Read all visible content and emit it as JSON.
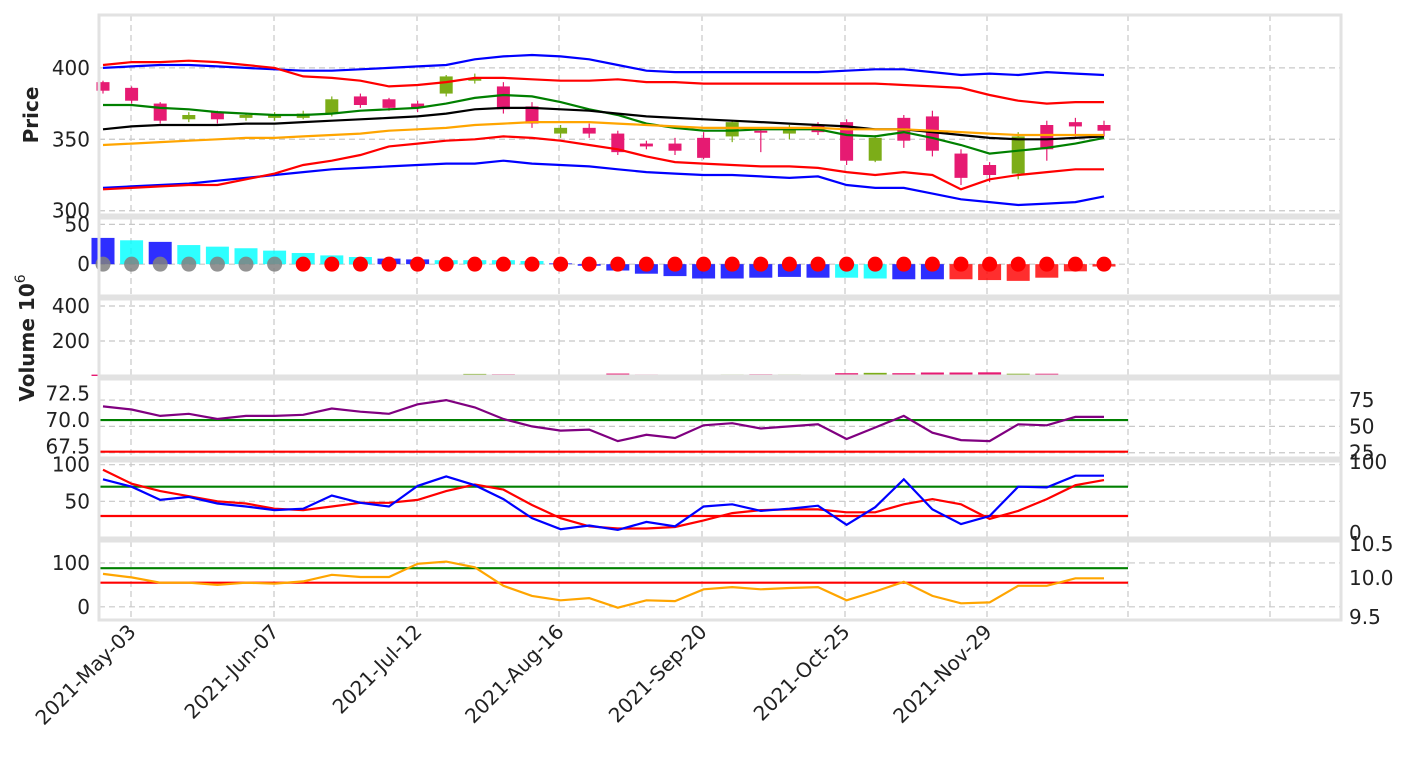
{
  "chart_data": {
    "type": "candlestick-multi-panel",
    "x_tick_labels": [
      "2021-May-03",
      "2021-Jun-07",
      "2021-Jul-12",
      "2021-Aug-16",
      "2021-Sep-20",
      "2021-Oct-25",
      "2021-Nov-29"
    ],
    "weeks": 36,
    "colors": {
      "up": "#7cad18",
      "down": "#e61a72",
      "bb_outer": "#0000ff",
      "bb_inner": "#ff0000",
      "ma_short": "#008000",
      "ma_mid": "#000000",
      "ma_long": "#ffa500",
      "macd_pos": "#0000ff",
      "macd_neg": "#00ffff",
      "macd_neg_strong": "#ff0000",
      "dot_gray": "#808080",
      "dot_red": "#ff0000",
      "rsi_line": "#800080",
      "level_high": "#008000",
      "level_low": "#ff0000",
      "stoch_k": "#0000ff",
      "stoch_d": "#ff0000",
      "cci_line": "#ffa500"
    },
    "panels": [
      {
        "name": "price",
        "ylabel": "Price",
        "yticks": [
          "300",
          "350",
          "400"
        ],
        "ylim": [
          297,
          437
        ],
        "candles": {
          "open": [
            390,
            386,
            375,
            364,
            369,
            365,
            365,
            365,
            368,
            380,
            378,
            375,
            382,
            391,
            387,
            373,
            354,
            358,
            354,
            347,
            347,
            351,
            352,
            356,
            354,
            360,
            362,
            335,
            365,
            366,
            340,
            332,
            326,
            360,
            362,
            360
          ],
          "close": [
            384,
            377,
            363,
            367,
            364,
            367,
            367,
            368,
            378,
            374,
            372,
            372,
            394,
            393,
            371,
            361,
            358,
            354,
            341,
            345,
            342,
            337,
            362,
            355,
            358,
            355,
            335,
            351,
            349,
            342,
            323,
            325,
            352,
            343,
            359,
            356
          ],
          "high": [
            391,
            387,
            376,
            369,
            370,
            368,
            369,
            370,
            380,
            382,
            379,
            377,
            395,
            396,
            390,
            376,
            360,
            361,
            356,
            349,
            351,
            355,
            363,
            358,
            360,
            362,
            364,
            353,
            367,
            370,
            343,
            334,
            355,
            363,
            365,
            363
          ],
          "low": [
            382,
            375,
            361,
            362,
            361,
            363,
            363,
            364,
            366,
            372,
            370,
            369,
            380,
            389,
            368,
            358,
            351,
            351,
            339,
            343,
            339,
            336,
            348,
            341,
            350,
            353,
            332,
            334,
            344,
            338,
            318,
            320,
            322,
            335,
            352,
            352
          ]
        },
        "lines": [
          {
            "color_key": "bb_outer",
            "values": [
              400,
              401,
              402,
              402,
              401,
              400,
              399,
              398,
              398,
              399,
              400,
              401,
              402,
              406,
              408,
              409,
              408,
              406,
              402,
              398,
              397,
              397,
              397,
              397,
              397,
              397,
              398,
              399,
              399,
              397,
              395,
              396,
              395,
              397,
              396,
              395
            ]
          },
          {
            "color_key": "bb_outer",
            "values": [
              316,
              317,
              318,
              319,
              321,
              323,
              325,
              327,
              329,
              330,
              331,
              332,
              333,
              333,
              335,
              333,
              332,
              331,
              329,
              327,
              326,
              325,
              325,
              324,
              323,
              324,
              318,
              316,
              316,
              312,
              308,
              306,
              304,
              305,
              306,
              310
            ]
          },
          {
            "color_key": "bb_inner",
            "values": [
              402,
              404,
              404,
              405,
              404,
              402,
              400,
              394,
              393,
              391,
              387,
              388,
              390,
              393,
              393,
              392,
              391,
              391,
              392,
              390,
              390,
              389,
              389,
              389,
              389,
              389,
              389,
              389,
              388,
              387,
              386,
              381,
              377,
              375,
              376,
              376
            ]
          },
          {
            "color_key": "bb_inner",
            "values": [
              315,
              316,
              317,
              318,
              318,
              322,
              326,
              332,
              335,
              339,
              345,
              347,
              349,
              350,
              352,
              351,
              349,
              346,
              343,
              338,
              334,
              333,
              332,
              331,
              331,
              330,
              327,
              325,
              327,
              325,
              315,
              322,
              325,
              327,
              329,
              329
            ]
          },
          {
            "color_key": "ma_short",
            "values": [
              374,
              374,
              372,
              371,
              369,
              368,
              367,
              367,
              368,
              370,
              371,
              372,
              375,
              379,
              381,
              380,
              376,
              371,
              367,
              361,
              358,
              356,
              356,
              357,
              357,
              357,
              353,
              352,
              355,
              351,
              346,
              340,
              342,
              344,
              347,
              351
            ]
          },
          {
            "color_key": "ma_mid",
            "values": [
              357,
              359,
              360,
              360,
              360,
              361,
              361,
              362,
              363,
              364,
              365,
              366,
              368,
              371,
              372,
              372,
              371,
              370,
              368,
              366,
              365,
              364,
              363,
              362,
              361,
              360,
              359,
              357,
              357,
              355,
              353,
              351,
              350,
              350,
              351,
              352
            ]
          },
          {
            "color_key": "ma_long",
            "values": [
              346,
              347,
              348,
              349,
              350,
              351,
              351,
              352,
              353,
              354,
              356,
              357,
              358,
              360,
              361,
              362,
              362,
              362,
              361,
              360,
              359,
              358,
              358,
              358,
              358,
              358,
              357,
              357,
              357,
              356,
              355,
              354,
              353,
              353,
              353,
              353
            ]
          }
        ]
      },
      {
        "name": "macd",
        "yticks": [
          "0",
          "50"
        ],
        "ylim": [
          -40,
          58
        ],
        "bars": [
          33,
          30,
          28,
          24,
          22,
          20,
          17,
          14,
          11,
          9,
          7,
          6,
          5,
          5,
          5,
          4,
          1,
          -2,
          -8,
          -12,
          -15,
          -18,
          -18,
          -17,
          -16,
          -17,
          -17,
          -18,
          -19,
          -19,
          -19,
          -20,
          -21,
          -17,
          -9,
          -3
        ],
        "bar_colors": [
          "macd_pos",
          "macd_neg",
          "macd_pos",
          "macd_neg",
          "macd_neg",
          "macd_neg",
          "macd_neg",
          "macd_neg",
          "macd_neg",
          "macd_neg",
          "macd_pos",
          "macd_pos",
          "macd_neg",
          "macd_neg",
          "macd_neg",
          "macd_neg",
          "macd_pos",
          "macd_pos",
          "macd_pos",
          "macd_pos",
          "macd_pos",
          "macd_pos",
          "macd_pos",
          "macd_pos",
          "macd_pos",
          "macd_pos",
          "macd_neg",
          "macd_neg",
          "macd_pos",
          "macd_pos",
          "macd_neg_strong",
          "macd_neg_strong",
          "macd_neg_strong",
          "macd_neg_strong",
          "macd_neg_strong",
          "macd_neg_strong"
        ],
        "dot_colors": [
          "dot_gray",
          "dot_gray",
          "dot_gray",
          "dot_gray",
          "dot_gray",
          "dot_gray",
          "dot_gray",
          "dot_red",
          "dot_red",
          "dot_red",
          "dot_red",
          "dot_red",
          "dot_red",
          "dot_red",
          "dot_red",
          "dot_red",
          "dot_red",
          "dot_red",
          "dot_red",
          "dot_red",
          "dot_red",
          "dot_red",
          "dot_red",
          "dot_red",
          "dot_red",
          "dot_red",
          "dot_red",
          "dot_red",
          "dot_red",
          "dot_red",
          "dot_red",
          "dot_red",
          "dot_red",
          "dot_red",
          "dot_red",
          "dot_red"
        ]
      },
      {
        "name": "volume",
        "ylabel": "Volume  10",
        "ylabel_exponent": "6",
        "yticks": [
          "200",
          "400"
        ],
        "ylim": [
          0,
          440
        ],
        "values": [
          8,
          7,
          6,
          7,
          7,
          5,
          6,
          7,
          8,
          7,
          6,
          5,
          8,
          12,
          10,
          8,
          7,
          8,
          14,
          9,
          8,
          8,
          9,
          10,
          9,
          6,
          16,
          18,
          16,
          20,
          20,
          21,
          13,
          13,
          6,
          5
        ]
      },
      {
        "name": "rsi",
        "yticks": [
          "67.5",
          "70.0",
          "72.5"
        ],
        "yticks_right": [
          "25",
          "50",
          "75"
        ],
        "ylim": [
          66.4,
          73.9
        ],
        "ylim_right": [
          20,
          95
        ],
        "line": [
          69,
          66,
          60,
          62,
          57,
          60,
          60,
          61,
          67,
          64,
          62,
          71,
          75,
          68,
          57,
          50,
          46,
          47,
          36,
          42,
          39,
          51,
          53,
          48,
          50,
          52,
          38,
          49,
          60,
          44,
          37,
          36,
          52,
          51,
          59,
          59
        ],
        "level_high": 70,
        "level_low": 67
      },
      {
        "name": "stochastic",
        "yticks": [
          "50",
          "100"
        ],
        "yticks_right": [
          "0",
          "100"
        ],
        "ylim": [
          0,
          105
        ],
        "k": [
          80,
          70,
          52,
          56,
          47,
          43,
          38,
          40,
          58,
          48,
          43,
          71,
          84,
          72,
          53,
          27,
          12,
          17,
          11,
          22,
          16,
          43,
          46,
          37,
          40,
          44,
          18,
          42,
          80,
          39,
          19,
          30,
          70,
          69,
          85,
          85
        ],
        "d": [
          93,
          74,
          64,
          57,
          50,
          47,
          40,
          38,
          43,
          48,
          48,
          52,
          64,
          73,
          66,
          45,
          27,
          16,
          13,
          13,
          15,
          24,
          34,
          38,
          39,
          39,
          35,
          35,
          46,
          53,
          46,
          26,
          37,
          53,
          72,
          79
        ],
        "level_high": 70,
        "level_low": 30
      },
      {
        "name": "cci",
        "yticks": [
          "0",
          "100"
        ],
        "yticks_right": [
          "9.5",
          "10.0",
          "10.5"
        ],
        "ylim": [
          -30,
          150
        ],
        "line": [
          75,
          67,
          55,
          55,
          50,
          55,
          53,
          58,
          73,
          68,
          68,
          98,
          103,
          90,
          48,
          25,
          15,
          20,
          -2,
          15,
          13,
          40,
          45,
          40,
          43,
          45,
          15,
          35,
          57,
          25,
          8,
          10,
          48,
          48,
          65,
          65
        ],
        "level_high": 88,
        "level_low": 55
      }
    ]
  }
}
